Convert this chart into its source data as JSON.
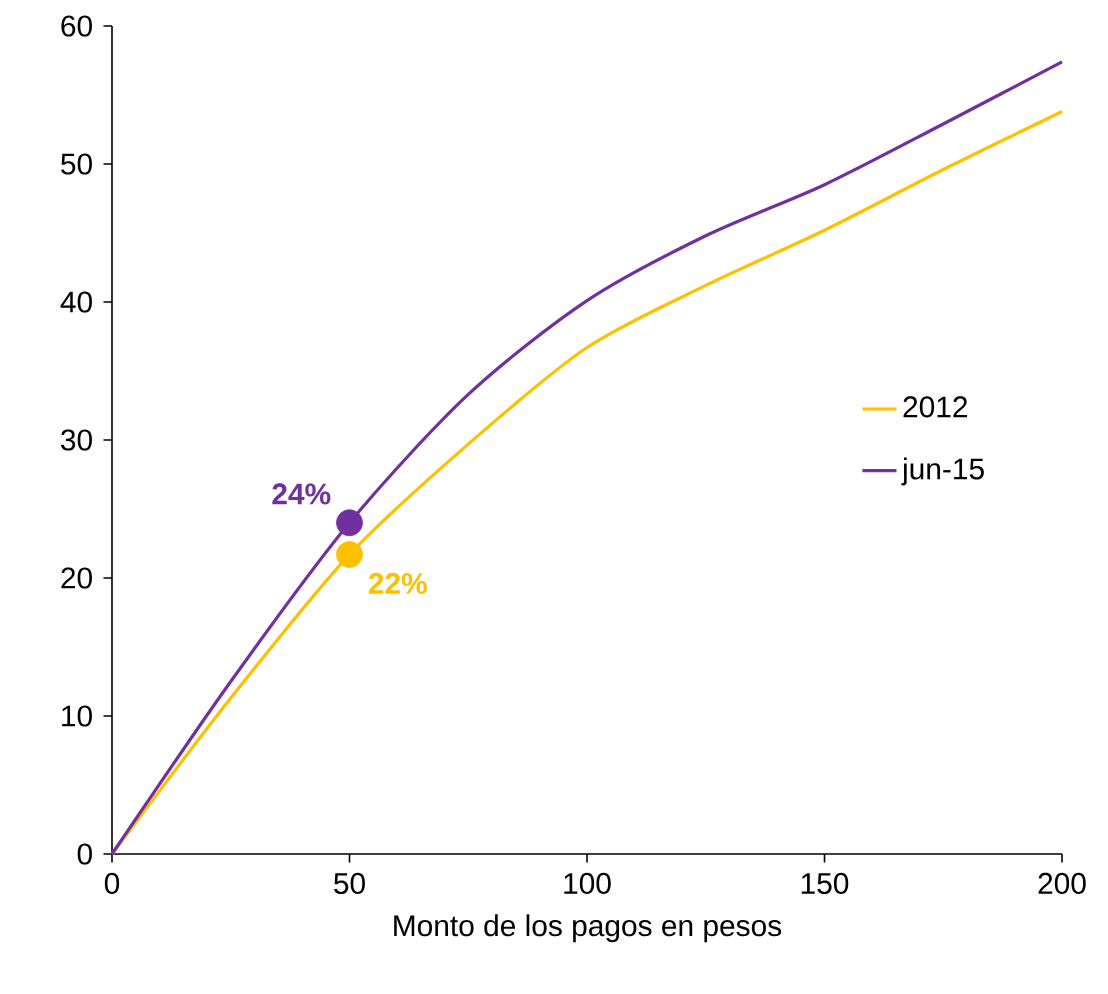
{
  "chart_data": {
    "type": "line",
    "xlabel": "Monto de los pagos en pesos",
    "xlim": [
      0,
      200
    ],
    "ylim": [
      0,
      60
    ],
    "xticks": [
      0,
      50,
      100,
      150,
      200
    ],
    "yticks": [
      0,
      10,
      20,
      30,
      40,
      50,
      60
    ],
    "grid": false,
    "legend": "right",
    "line_style": "solid",
    "series": [
      {
        "name": "2012",
        "color": "#ffc000",
        "x": [
          0,
          25,
          50,
          75,
          100,
          125,
          150,
          175,
          200
        ],
        "values": [
          0,
          11.3,
          21.7,
          29.7,
          36.7,
          41.2,
          45.2,
          49.6,
          53.8
        ]
      },
      {
        "name": "jun-15",
        "color": "#7030a0",
        "x": [
          0,
          25,
          50,
          75,
          100,
          125,
          150,
          175,
          200
        ],
        "values": [
          0,
          12.5,
          24,
          33.3,
          40.1,
          44.8,
          48.5,
          52.9,
          57.4
        ]
      },
      {
        "type": "scatter",
        "color": "#ffc000",
        "x": [
          50
        ],
        "values": [
          21.7
        ],
        "value_labels": [
          "22%"
        ],
        "marker": "circle"
      },
      {
        "type": "scatter",
        "color": "#7030a0",
        "x": [
          50
        ],
        "values": [
          24
        ],
        "value_labels": [
          "24%"
        ],
        "marker": "circle"
      }
    ]
  }
}
